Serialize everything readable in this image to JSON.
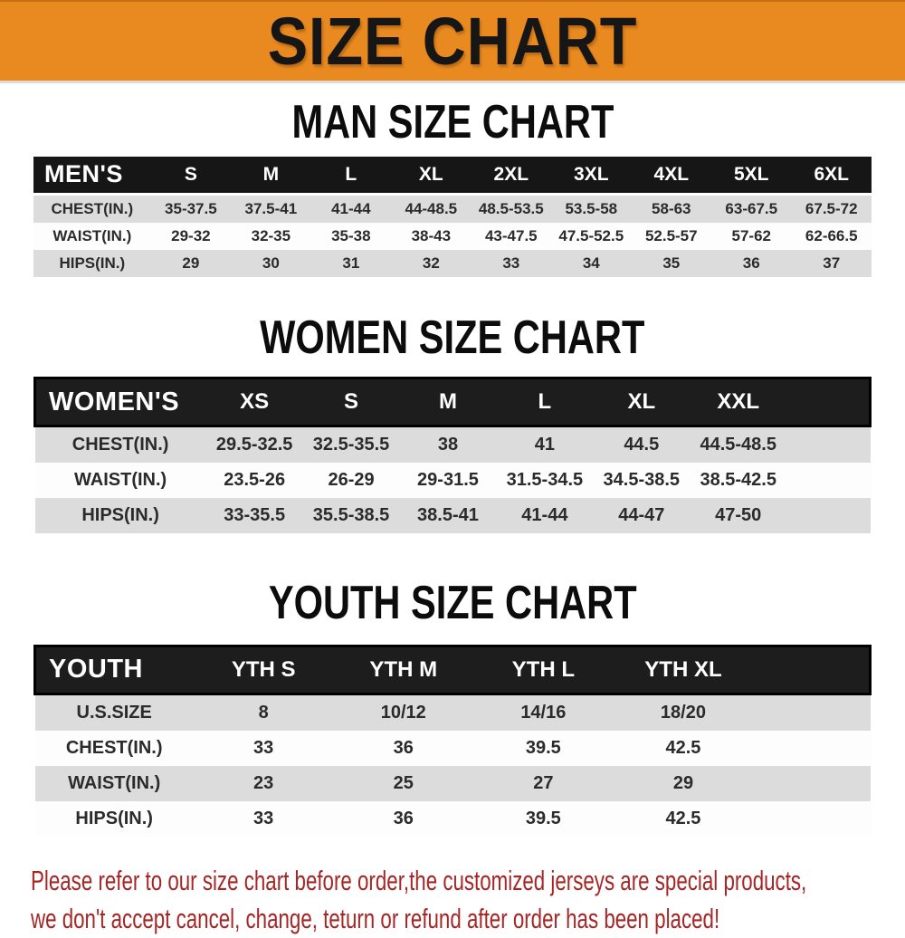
{
  "banner": {
    "title": "SIZE CHART",
    "bg_color": "#E98A20",
    "text_color": "#161616"
  },
  "chart_data": [
    {
      "type": "table",
      "title": "MAN SIZE CHART",
      "header_label": "MEN'S",
      "columns": [
        "S",
        "M",
        "L",
        "XL",
        "2XL",
        "3XL",
        "4XL",
        "5XL",
        "6XL"
      ],
      "rows": [
        {
          "label": "CHEST(IN.)",
          "values": [
            "35-37.5",
            "37.5-41",
            "41-44",
            "44-48.5",
            "48.5-53.5",
            "53.5-58",
            "58-63",
            "63-67.5",
            "67.5-72"
          ]
        },
        {
          "label": "WAIST(IN.)",
          "values": [
            "29-32",
            "32-35",
            "35-38",
            "38-43",
            "43-47.5",
            "47.5-52.5",
            "52.5-57",
            "57-62",
            "62-66.5"
          ]
        },
        {
          "label": "HIPS(IN.)",
          "values": [
            "29",
            "30",
            "31",
            "32",
            "33",
            "34",
            "35",
            "36",
            "37"
          ]
        }
      ]
    },
    {
      "type": "table",
      "title": "WOMEN SIZE CHART",
      "header_label": "WOMEN'S",
      "columns": [
        "XS",
        "S",
        "M",
        "L",
        "XL",
        "XXL"
      ],
      "rows": [
        {
          "label": "CHEST(IN.)",
          "values": [
            "29.5-32.5",
            "32.5-35.5",
            "38",
            "41",
            "44.5",
            "44.5-48.5"
          ]
        },
        {
          "label": "WAIST(IN.)",
          "values": [
            "23.5-26",
            "26-29",
            "29-31.5",
            "31.5-34.5",
            "34.5-38.5",
            "38.5-42.5"
          ]
        },
        {
          "label": "HIPS(IN.)",
          "values": [
            "33-35.5",
            "35.5-38.5",
            "38.5-41",
            "41-44",
            "44-47",
            "47-50"
          ]
        }
      ]
    },
    {
      "type": "table",
      "title": "YOUTH SIZE CHART",
      "header_label": "YOUTH",
      "columns": [
        "YTH S",
        "YTH M",
        "YTH L",
        "YTH XL"
      ],
      "rows": [
        {
          "label": "U.S.SIZE",
          "values": [
            "8",
            "10/12",
            "14/16",
            "18/20"
          ]
        },
        {
          "label": "CHEST(IN.)",
          "values": [
            "33",
            "36",
            "39.5",
            "42.5"
          ]
        },
        {
          "label": "WAIST(IN.)",
          "values": [
            "23",
            "25",
            "27",
            "29"
          ]
        },
        {
          "label": "HIPS(IN.)",
          "values": [
            "33",
            "36",
            "39.5",
            "42.5"
          ]
        }
      ]
    }
  ],
  "footer": {
    "line1": "Please refer to our size chart before order,the customized jerseys are special products,",
    "line2": "we don't accept cancel, change, teturn or refund after order has been placed!",
    "text_color": "#A62626"
  }
}
